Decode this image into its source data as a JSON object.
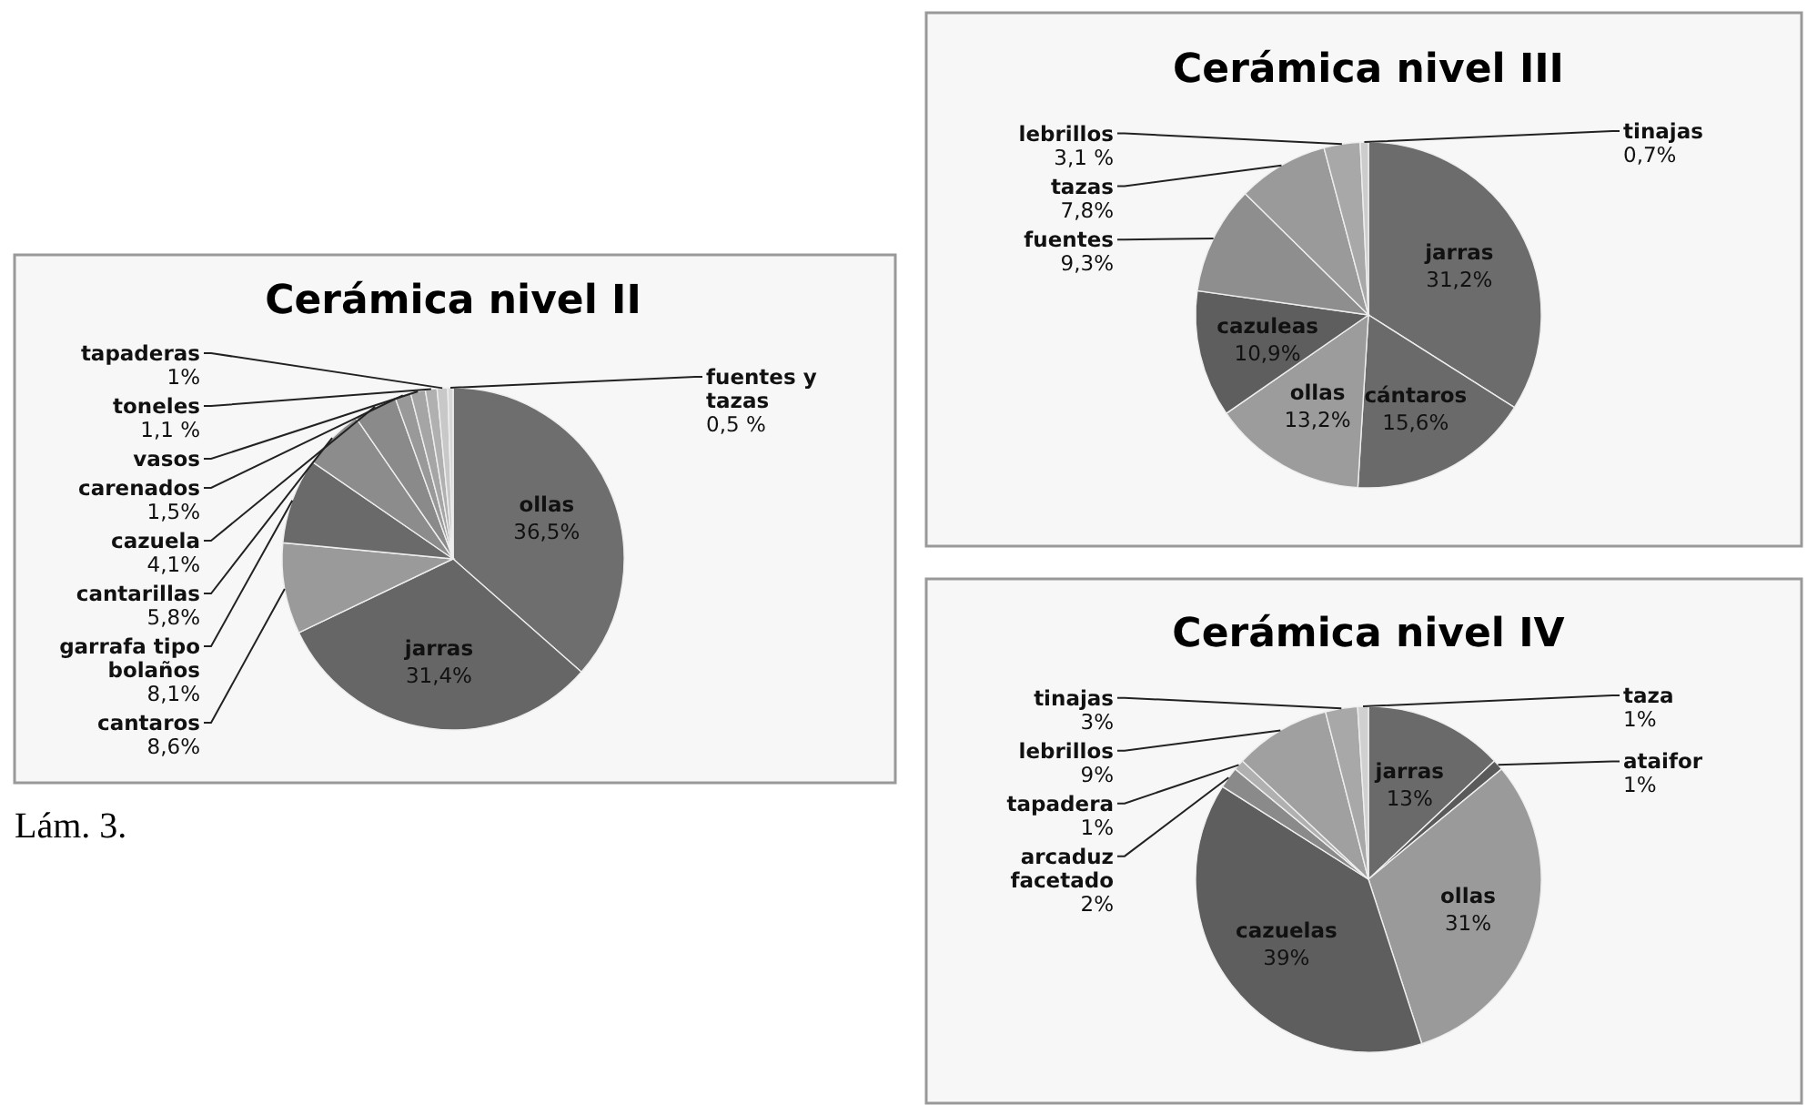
{
  "chart_data": [
    {
      "type": "pie",
      "title": "Cerámica nivel II",
      "categories": [
        "ollas",
        "jarras",
        "cantaros",
        "garrafa tipo bolaños",
        "cantarillas",
        "cazuela",
        "carenados",
        "vasos",
        "toneles",
        "tapaderas",
        "fuentes y tazas"
      ],
      "values": [
        36.5,
        31.4,
        8.6,
        8.1,
        5.8,
        4.1,
        1.5,
        1.4,
        1.1,
        1,
        0.5
      ],
      "value_labels": [
        "36,5%",
        "31,4%",
        "8,6%",
        "8,1%",
        "5,8%",
        "4,1%",
        "1,5%",
        null,
        "1,1 %",
        "1%",
        "0,5 %"
      ],
      "colors": [
        "#6e6e6e",
        "#666666",
        "#9a9a9a",
        "#6a6a6a",
        "#8c8c8c",
        "#8a8a8a",
        "#999999",
        "#a5a5a5",
        "#b0b0b0",
        "#c8c8c8",
        "#d8d8d8"
      ],
      "annotations": [
        "Lám. 3."
      ]
    },
    {
      "type": "pie",
      "title": "Cerámica nivel III",
      "categories": [
        "jarras",
        "cántaros",
        "ollas",
        "cazuleas",
        "fuentes",
        "tazas",
        "lebrillos",
        "tinajas"
      ],
      "values": [
        31.2,
        15.6,
        13.2,
        10.9,
        9.3,
        7.8,
        3.1,
        0.7
      ],
      "value_labels": [
        "31,2%",
        "15,6%",
        "13,2%",
        "10,9%",
        "9,3%",
        "7,8%",
        "3,1 %",
        "0,7%"
      ],
      "colors": [
        "#6c6c6c",
        "#6a6a6a",
        "#9c9c9c",
        "#5e5e5e",
        "#8e8e8e",
        "#9a9a9a",
        "#a8a8a8",
        "#cccccc"
      ]
    },
    {
      "type": "pie",
      "title": "Cerámica nivel IV",
      "categories": [
        "jarras",
        "ataifor",
        "ollas",
        "cazuelas",
        "arcaduz facetado",
        "tapadera",
        "lebrillos",
        "tinajas",
        "taza"
      ],
      "values": [
        13,
        1,
        31,
        39,
        2,
        1,
        9,
        3,
        1
      ],
      "value_labels": [
        "13%",
        "1%",
        "31%",
        "39%",
        "2%",
        "1%",
        "9%",
        "3%",
        "1%"
      ],
      "colors": [
        "#6a6a6a",
        "#5a5a5a",
        "#9a9a9a",
        "#5e5e5e",
        "#8a8a8a",
        "#b0b0b0",
        "#a0a0a0",
        "#a8a8a8",
        "#d0d0d0"
      ]
    }
  ]
}
